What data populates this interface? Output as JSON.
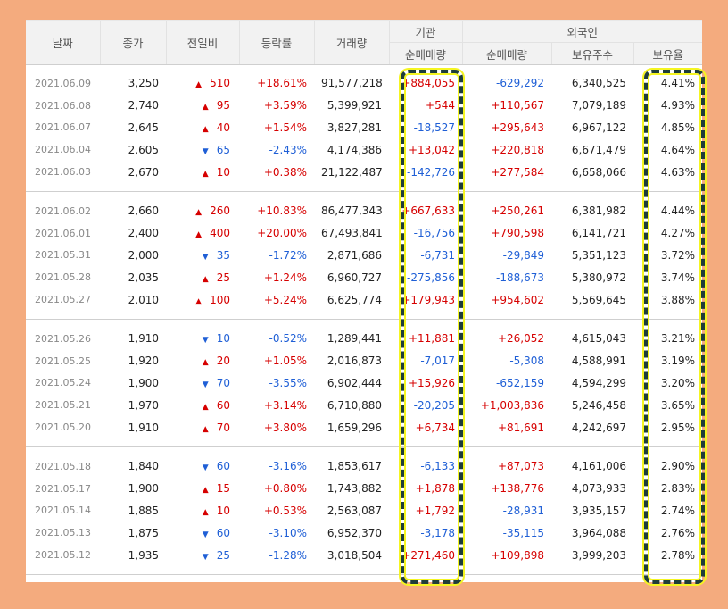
{
  "header": {
    "date": "날짜",
    "close": "종가",
    "change": "전일비",
    "rate": "등락률",
    "volume": "거래량",
    "institution": "기관",
    "foreign": "외국인",
    "inst_net": "순매매량",
    "for_net": "순매매량",
    "for_hold": "보유주수",
    "for_ratio": "보유율"
  },
  "groups": [
    [
      {
        "date": "2021.06.09",
        "close": "3,250",
        "dir": "up",
        "change": "510",
        "rate": "+18.61%",
        "volume": "91,577,218",
        "inst": "+884,055",
        "foreign": "-629,292",
        "hold": "6,340,525",
        "ratio": "4.41%"
      },
      {
        "date": "2021.06.08",
        "close": "2,740",
        "dir": "up",
        "change": "95",
        "rate": "+3.59%",
        "volume": "5,399,921",
        "inst": "+544",
        "foreign": "+110,567",
        "hold": "7,079,189",
        "ratio": "4.93%"
      },
      {
        "date": "2021.06.07",
        "close": "2,645",
        "dir": "up",
        "change": "40",
        "rate": "+1.54%",
        "volume": "3,827,281",
        "inst": "-18,527",
        "foreign": "+295,643",
        "hold": "6,967,122",
        "ratio": "4.85%"
      },
      {
        "date": "2021.06.04",
        "close": "2,605",
        "dir": "down",
        "change": "65",
        "rate": "-2.43%",
        "volume": "4,174,386",
        "inst": "+13,042",
        "foreign": "+220,818",
        "hold": "6,671,479",
        "ratio": "4.64%"
      },
      {
        "date": "2021.06.03",
        "close": "2,670",
        "dir": "up",
        "change": "10",
        "rate": "+0.38%",
        "volume": "21,122,487",
        "inst": "-142,726",
        "foreign": "+277,584",
        "hold": "6,658,066",
        "ratio": "4.63%"
      }
    ],
    [
      {
        "date": "2021.06.02",
        "close": "2,660",
        "dir": "up",
        "change": "260",
        "rate": "+10.83%",
        "volume": "86,477,343",
        "inst": "+667,633",
        "foreign": "+250,261",
        "hold": "6,381,982",
        "ratio": "4.44%"
      },
      {
        "date": "2021.06.01",
        "close": "2,400",
        "dir": "up",
        "change": "400",
        "rate": "+20.00%",
        "volume": "67,493,841",
        "inst": "-16,756",
        "foreign": "+790,598",
        "hold": "6,141,721",
        "ratio": "4.27%"
      },
      {
        "date": "2021.05.31",
        "close": "2,000",
        "dir": "down",
        "change": "35",
        "rate": "-1.72%",
        "volume": "2,871,686",
        "inst": "-6,731",
        "foreign": "-29,849",
        "hold": "5,351,123",
        "ratio": "3.72%"
      },
      {
        "date": "2021.05.28",
        "close": "2,035",
        "dir": "up",
        "change": "25",
        "rate": "+1.24%",
        "volume": "6,960,727",
        "inst": "-275,856",
        "foreign": "-188,673",
        "hold": "5,380,972",
        "ratio": "3.74%"
      },
      {
        "date": "2021.05.27",
        "close": "2,010",
        "dir": "up",
        "change": "100",
        "rate": "+5.24%",
        "volume": "6,625,774",
        "inst": "+179,943",
        "foreign": "+954,602",
        "hold": "5,569,645",
        "ratio": "3.88%"
      }
    ],
    [
      {
        "date": "2021.05.26",
        "close": "1,910",
        "dir": "down",
        "change": "10",
        "rate": "-0.52%",
        "volume": "1,289,441",
        "inst": "+11,881",
        "foreign": "+26,052",
        "hold": "4,615,043",
        "ratio": "3.21%"
      },
      {
        "date": "2021.05.25",
        "close": "1,920",
        "dir": "up",
        "change": "20",
        "rate": "+1.05%",
        "volume": "2,016,873",
        "inst": "-7,017",
        "foreign": "-5,308",
        "hold": "4,588,991",
        "ratio": "3.19%"
      },
      {
        "date": "2021.05.24",
        "close": "1,900",
        "dir": "down",
        "change": "70",
        "rate": "-3.55%",
        "volume": "6,902,444",
        "inst": "+15,926",
        "foreign": "-652,159",
        "hold": "4,594,299",
        "ratio": "3.20%"
      },
      {
        "date": "2021.05.21",
        "close": "1,970",
        "dir": "up",
        "change": "60",
        "rate": "+3.14%",
        "volume": "6,710,880",
        "inst": "-20,205",
        "foreign": "+1,003,836",
        "hold": "5,246,458",
        "ratio": "3.65%"
      },
      {
        "date": "2021.05.20",
        "close": "1,910",
        "dir": "up",
        "change": "70",
        "rate": "+3.80%",
        "volume": "1,659,296",
        "inst": "+6,734",
        "foreign": "+81,691",
        "hold": "4,242,697",
        "ratio": "2.95%"
      }
    ],
    [
      {
        "date": "2021.05.18",
        "close": "1,840",
        "dir": "down",
        "change": "60",
        "rate": "-3.16%",
        "volume": "1,853,617",
        "inst": "-6,133",
        "foreign": "+87,073",
        "hold": "4,161,006",
        "ratio": "2.90%"
      },
      {
        "date": "2021.05.17",
        "close": "1,900",
        "dir": "up",
        "change": "15",
        "rate": "+0.80%",
        "volume": "1,743,882",
        "inst": "+1,878",
        "foreign": "+138,776",
        "hold": "4,073,933",
        "ratio": "2.83%"
      },
      {
        "date": "2021.05.14",
        "close": "1,885",
        "dir": "up",
        "change": "10",
        "rate": "+0.53%",
        "volume": "2,563,087",
        "inst": "+1,792",
        "foreign": "-28,931",
        "hold": "3,935,157",
        "ratio": "2.74%"
      },
      {
        "date": "2021.05.13",
        "close": "1,875",
        "dir": "down",
        "change": "60",
        "rate": "-3.10%",
        "volume": "6,952,370",
        "inst": "-3,178",
        "foreign": "-35,115",
        "hold": "3,964,088",
        "ratio": "2.76%"
      },
      {
        "date": "2021.05.12",
        "close": "1,935",
        "dir": "down",
        "change": "25",
        "rate": "-1.28%",
        "volume": "3,018,504",
        "inst": "+271,460",
        "foreign": "+109,898",
        "hold": "3,999,203",
        "ratio": "2.78%"
      }
    ]
  ],
  "arrows": {
    "up": "▲",
    "down": "▼"
  },
  "colors": {
    "up": "#d60000",
    "down": "#1f5fd6",
    "highlight_border": "#1e3d3a",
    "highlight_glow": "#f5f522",
    "background": "#f4ab7e"
  }
}
